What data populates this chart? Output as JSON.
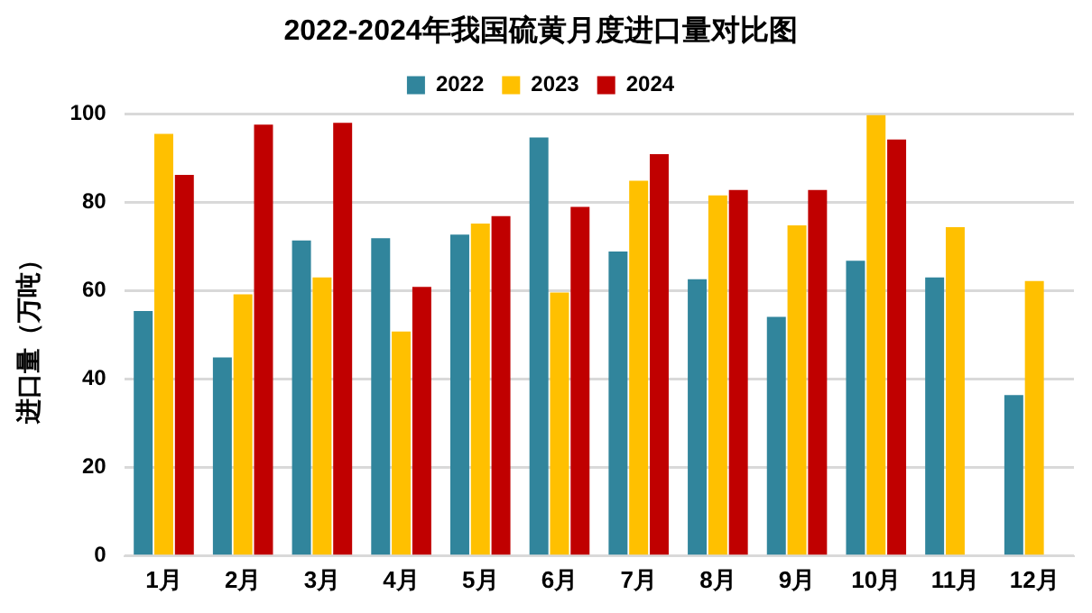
{
  "chart_data": {
    "type": "bar",
    "title": "2022-2024年我国硫黄月度进口量对比图",
    "ylabel": "进口量（万吨）",
    "categories": [
      "1月",
      "2月",
      "3月",
      "4月",
      "5月",
      "6月",
      "7月",
      "8月",
      "9月",
      "10月",
      "11月",
      "12月"
    ],
    "series": [
      {
        "name": "2022",
        "color": "#31859c",
        "values": [
          55.4,
          44.9,
          71.4,
          71.9,
          72.7,
          94.7,
          68.9,
          62.6,
          54.1,
          66.8,
          63.0,
          36.4
        ]
      },
      {
        "name": "2023",
        "color": "#ffc000",
        "values": [
          95.5,
          59.2,
          63.0,
          50.8,
          75.2,
          59.6,
          84.9,
          81.6,
          74.8,
          99.7,
          74.4,
          62.2
        ]
      },
      {
        "name": "2024",
        "color": "#c00000",
        "values": [
          86.2,
          97.6,
          98.0,
          60.9,
          76.9,
          79.0,
          90.9,
          82.8,
          82.8,
          94.2,
          null,
          null
        ]
      }
    ],
    "ylim": [
      0,
      100
    ],
    "yticks": [
      0,
      20,
      40,
      60,
      80,
      100
    ],
    "grid": "y",
    "legend": "top"
  }
}
